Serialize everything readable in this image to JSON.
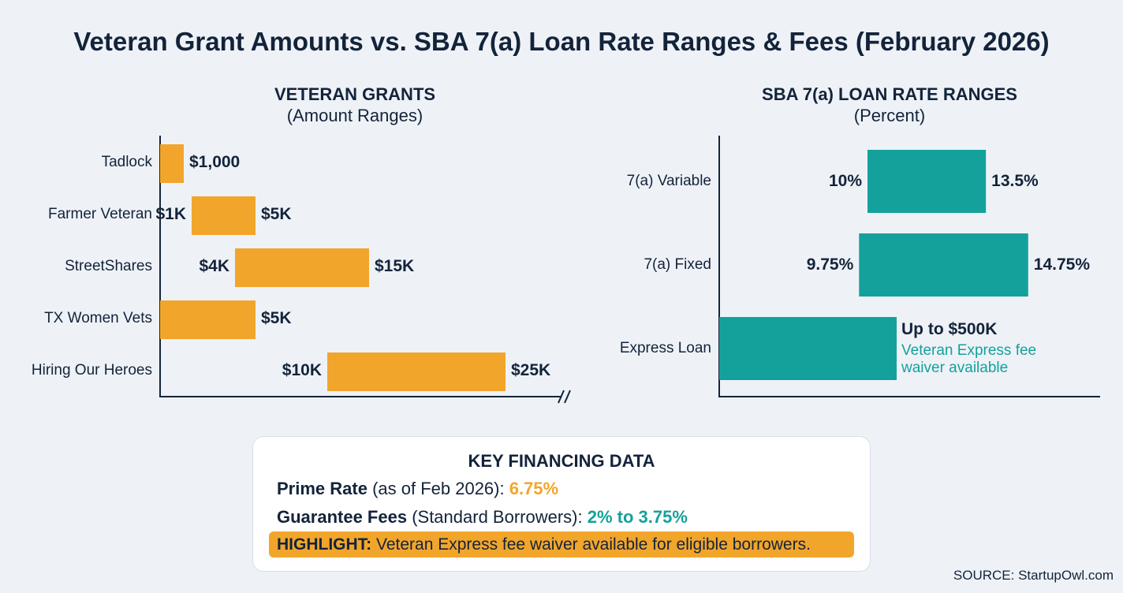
{
  "title": "Veteran Grant Amounts vs. SBA 7(a) Loan Rate Ranges & Fees (February 2026)",
  "colors": {
    "grant": "#f2a52b",
    "loan": "#14a19b",
    "text": "#13233a"
  },
  "chart_data": [
    {
      "type": "bar",
      "orientation": "horizontal-range",
      "title": "VETERAN GRANTS",
      "subtitle": "(Amount Ranges)",
      "axis_break": true,
      "categories": [
        "Tadlock",
        "Farmer Veteran",
        "StreetShares",
        "TX Women Vets",
        "Hiring Our Heroes"
      ],
      "ranges": [
        [
          0,
          1000
        ],
        [
          1000,
          5000
        ],
        [
          4000,
          15000
        ],
        [
          0,
          5000
        ],
        [
          10000,
          25000
        ]
      ],
      "labels": [
        [
          "",
          "$1,000"
        ],
        [
          "$1K",
          "$5K"
        ],
        [
          "$4K",
          "$15K"
        ],
        [
          "",
          "$5K"
        ],
        [
          "$10K",
          "$25K"
        ]
      ]
    },
    {
      "type": "bar",
      "orientation": "horizontal-range",
      "title": "SBA 7(a) LOAN RATE RANGES",
      "subtitle": "(Percent)",
      "categories": [
        "7(a) Variable",
        "7(a) Fixed",
        "Express Loan"
      ],
      "ranges": [
        [
          10,
          13.5
        ],
        [
          9.75,
          14.75
        ],
        null
      ],
      "labels": [
        [
          "10%",
          "13.5%"
        ],
        [
          "9.75%",
          "14.75%"
        ],
        [
          "",
          "Up to $500K"
        ]
      ],
      "annotation": "Veteran Express fee waiver available"
    }
  ],
  "box": {
    "title": "KEY FINANCING DATA",
    "prime_label": "Prime Rate",
    "prime_note": " (as of Feb 2026): ",
    "prime_value": "6.75%",
    "fees_label": "Guarantee Fees",
    "fees_note": " (Standard Borrowers): ",
    "fees_value": "2% to 3.75%",
    "highlight_label": "HIGHLIGHT:",
    "highlight_text": " Veteran Express fee waiver available for eligible borrowers."
  },
  "source": "SOURCE: StartupOwl.com"
}
